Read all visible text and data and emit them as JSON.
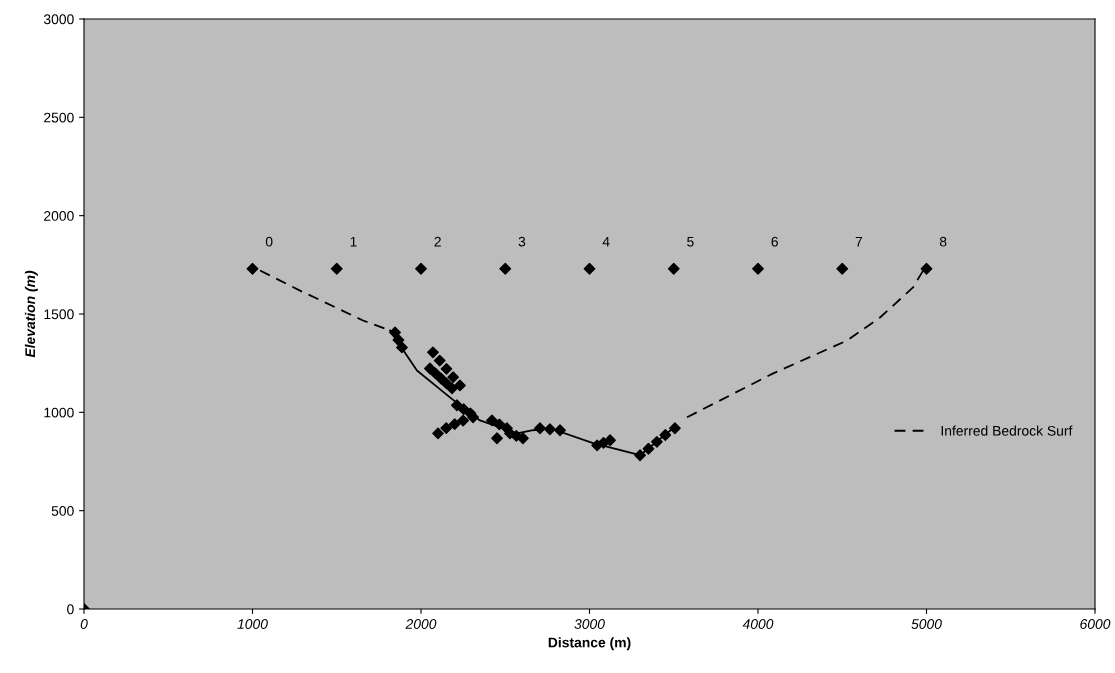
{
  "chart_data": {
    "type": "scatter",
    "xlabel": "Distance (m)",
    "ylabel": "Elevation (m)",
    "xlim": [
      0,
      6000
    ],
    "ylim": [
      0,
      3000
    ],
    "xticks": [
      0,
      1000,
      2000,
      3000,
      4000,
      5000,
      6000
    ],
    "yticks": [
      0,
      500,
      1000,
      1500,
      2000,
      2500,
      3000
    ],
    "grid": false,
    "legend": "right",
    "series": [
      {
        "color": "#000000",
        "marker": "diamond",
        "x": [
          0,
          1000,
          1500,
          2000,
          2500,
          3000,
          3500,
          4000,
          4500,
          5000
        ],
        "values": [
          0,
          1730,
          1730,
          1730,
          1730,
          1730,
          1730,
          1730,
          1730,
          1730
        ]
      },
      {
        "color": "#000000",
        "marker": "diamond",
        "x": [
          1846,
          1866,
          1887,
          2071,
          2111,
          2151,
          2191,
          2231,
          2053,
          2086,
          2119,
          2151,
          2184,
          2213,
          2253,
          2293,
          2101,
          2150,
          2200,
          2250,
          2309,
          2421,
          2465,
          2510,
          2451,
          2528,
          2566,
          2605,
          2706,
          2765,
          2825,
          3045,
          3083,
          3122,
          3300,
          3350,
          3400,
          3450,
          3507
        ],
        "values": [
          1406,
          1368,
          1330,
          1305,
          1263,
          1221,
          1179,
          1137,
          1223,
          1198,
          1172,
          1147,
          1122,
          1036,
          1016,
          995,
          893,
          920,
          940,
          958,
          975,
          959,
          939,
          919,
          868,
          893,
          880,
          868,
          919,
          914,
          909,
          832,
          845,
          858,
          782,
          815,
          850,
          885,
          919
        ]
      },
      {
        "type": "line",
        "color": "#000000",
        "line_style": "solid",
        "marker": "none",
        "x": [
          1816,
          1976,
          2172,
          2290,
          2350,
          2570,
          2665,
          2766,
          3021,
          3300,
          3496
        ],
        "values": [
          1416,
          1213,
          1076,
          995,
          959,
          893,
          909,
          919,
          843,
          782,
          919
        ]
      },
      {
        "type": "line",
        "name": "Inferred Bedrock Surf",
        "color": "#000000",
        "line_style": "dashed",
        "marker": "none",
        "x": [
          1045,
          1282,
          1656,
          1816,
          null,
          3579,
          4090,
          4528,
          4724,
          4920,
          4980
        ],
        "values": [
          1721,
          1619,
          1467,
          1416,
          null,
          975,
          1198,
          1365,
          1482,
          1635,
          1721
        ]
      }
    ],
    "annotations": [
      {
        "text": "0",
        "x": 1000,
        "y": 1730
      },
      {
        "text": "1",
        "x": 1500,
        "y": 1730
      },
      {
        "text": "2",
        "x": 2000,
        "y": 1730
      },
      {
        "text": "3",
        "x": 2500,
        "y": 1730
      },
      {
        "text": "4",
        "x": 3000,
        "y": 1730
      },
      {
        "text": "5",
        "x": 3500,
        "y": 1730
      },
      {
        "text": "6",
        "x": 4000,
        "y": 1730
      },
      {
        "text": "7",
        "x": 4500,
        "y": 1730
      },
      {
        "text": "8",
        "x": 5000,
        "y": 1730
      }
    ]
  }
}
